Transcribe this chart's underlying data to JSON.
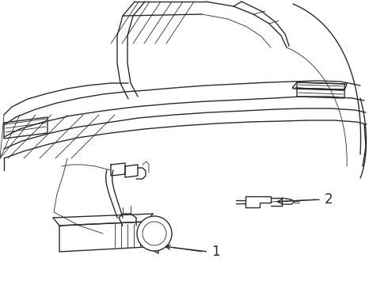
{
  "bg_color": "#ffffff",
  "line_color": "#2a2a2a",
  "lw_main": 1.0,
  "lw_thin": 0.6,
  "fig_width": 4.9,
  "fig_height": 3.6,
  "dpi": 100,
  "label1": "1",
  "label2": "2"
}
